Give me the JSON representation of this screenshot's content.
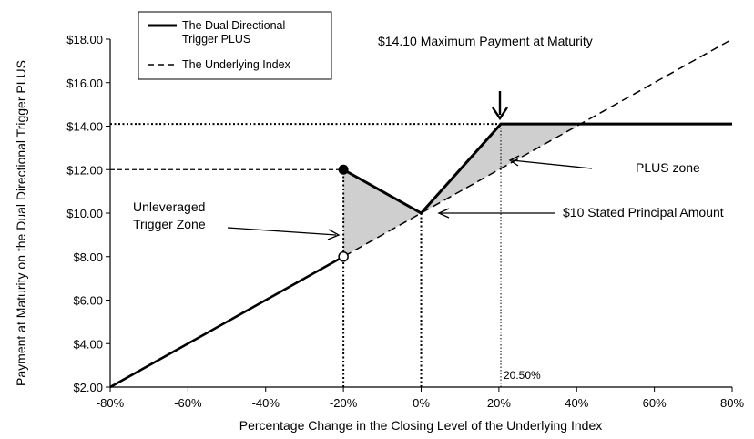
{
  "chart_data": {
    "type": "line",
    "xlabel": "Percentage Change in the Closing Level of the Underlying Index",
    "ylabel": "Payment at Maturity on the Dual Directional Trigger PLUS",
    "xlim": [
      -80,
      80
    ],
    "ylim": [
      2,
      18
    ],
    "x_ticks": [
      "-80%",
      "-60%",
      "-40%",
      "-20%",
      "0%",
      "20%",
      "40%",
      "60%",
      "80%"
    ],
    "x_tick_values": [
      -80,
      -60,
      -40,
      -20,
      0,
      20,
      40,
      60,
      80
    ],
    "y_ticks": [
      "$2.00",
      "$4.00",
      "$6.00",
      "$8.00",
      "$10.00",
      "$12.00",
      "$14.00",
      "$16.00",
      "$18.00"
    ],
    "y_tick_values": [
      2,
      4,
      6,
      8,
      10,
      12,
      14,
      16,
      18
    ],
    "grid": false,
    "legend_position": "top-left",
    "series": [
      {
        "name": "The Dual Directional Trigger PLUS",
        "style": "solid",
        "points": [
          [
            -80,
            2
          ],
          [
            -20,
            8
          ]
        ],
        "points2": [
          [
            -20,
            12
          ],
          [
            0,
            10
          ],
          [
            20.5,
            14.1
          ],
          [
            80,
            14.1
          ]
        ]
      },
      {
        "name": "The Underlying Index",
        "style": "dashed",
        "points": [
          [
            -80,
            2
          ],
          [
            80,
            18
          ]
        ]
      }
    ],
    "legend": [
      "The Dual Directional\nTrigger PLUS",
      "The Underlying Index"
    ],
    "shaded_zones": [
      {
        "name": "unleveraged",
        "polygon": [
          [
            -20,
            12
          ],
          [
            0,
            10
          ],
          [
            -20,
            8
          ]
        ]
      },
      {
        "name": "plus",
        "polygon": [
          [
            0,
            10
          ],
          [
            20.5,
            14.1
          ],
          [
            41,
            14.1
          ]
        ]
      }
    ],
    "markers": [
      {
        "x": -20,
        "y": 12,
        "fill": "filled"
      },
      {
        "x": -20,
        "y": 8,
        "fill": "open"
      }
    ],
    "reference_lines": [
      {
        "orientation": "h",
        "value": 14.1,
        "from_x": -80,
        "to_x": 20.5,
        "style": "dotted"
      },
      {
        "orientation": "h",
        "value": 12,
        "from_x": -80,
        "to_x": -20,
        "style": "dashed"
      },
      {
        "orientation": "v",
        "value": -20,
        "from_y": 2,
        "to_y": 12,
        "style": "dotted"
      },
      {
        "orientation": "v",
        "value": 0,
        "from_y": 2,
        "to_y": 10,
        "style": "dotted"
      },
      {
        "orientation": "v",
        "value": 20.5,
        "from_y": 2,
        "to_y": 14.1,
        "style": "dotted-thin"
      }
    ],
    "annotations": {
      "max_payment": "$14.10 Maximum Payment at Maturity",
      "plus_zone": "PLUS zone",
      "stated_principal": "$10 Stated Principal Amount",
      "unleveraged_line1": "Unleveraged",
      "unleveraged_line2": "Trigger Zone",
      "cap_label": "20.50%"
    }
  }
}
